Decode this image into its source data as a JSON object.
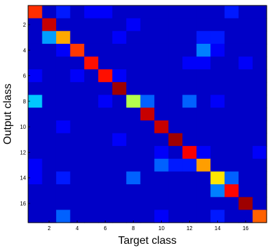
{
  "chart_data": {
    "type": "heatmap",
    "xlabel": "Target class",
    "ylabel": "Output class",
    "x_ticks": [
      2,
      4,
      6,
      8,
      10,
      12,
      14,
      16
    ],
    "y_ticks": [
      2,
      4,
      6,
      8,
      10,
      12,
      14,
      16
    ],
    "x_tick_labels": [
      "2",
      "4",
      "6",
      "8",
      "10",
      "12",
      "14",
      "16"
    ],
    "y_tick_labels": [
      "2",
      "4",
      "6",
      "8",
      "10",
      "12",
      "14",
      "16"
    ],
    "n_classes": 17,
    "colormap": "jet",
    "value_range": [
      0,
      1
    ],
    "matrix": [
      [
        0.83,
        0.07,
        0.15,
        0.07,
        0.12,
        0.12,
        0.07,
        0.07,
        0.07,
        0.07,
        0.07,
        0.07,
        0.07,
        0.07,
        0.15,
        0.07,
        0.07
      ],
      [
        0.07,
        0.93,
        0.07,
        0.07,
        0.07,
        0.07,
        0.07,
        0.12,
        0.07,
        0.07,
        0.07,
        0.07,
        0.07,
        0.07,
        0.07,
        0.07,
        0.07
      ],
      [
        0.07,
        0.28,
        0.71,
        0.07,
        0.07,
        0.07,
        0.12,
        0.07,
        0.07,
        0.07,
        0.07,
        0.07,
        0.15,
        0.15,
        0.07,
        0.07,
        0.07
      ],
      [
        0.07,
        0.07,
        0.12,
        0.82,
        0.07,
        0.07,
        0.07,
        0.07,
        0.07,
        0.07,
        0.07,
        0.07,
        0.25,
        0.12,
        0.07,
        0.07,
        0.07
      ],
      [
        0.07,
        0.07,
        0.07,
        0.07,
        0.86,
        0.07,
        0.07,
        0.07,
        0.07,
        0.07,
        0.07,
        0.12,
        0.12,
        0.07,
        0.07,
        0.12,
        0.07
      ],
      [
        0.12,
        0.07,
        0.07,
        0.12,
        0.07,
        0.86,
        0.12,
        0.07,
        0.07,
        0.07,
        0.07,
        0.07,
        0.07,
        0.07,
        0.07,
        0.07,
        0.07
      ],
      [
        0.07,
        0.07,
        0.07,
        0.07,
        0.07,
        0.07,
        0.97,
        0.07,
        0.07,
        0.07,
        0.07,
        0.07,
        0.07,
        0.07,
        0.07,
        0.07,
        0.07
      ],
      [
        0.32,
        0.07,
        0.07,
        0.07,
        0.07,
        0.12,
        0.07,
        0.55,
        0.22,
        0.07,
        0.07,
        0.22,
        0.07,
        0.12,
        0.07,
        0.07,
        0.07
      ],
      [
        0.07,
        0.07,
        0.07,
        0.07,
        0.07,
        0.07,
        0.07,
        0.07,
        0.93,
        0.07,
        0.07,
        0.07,
        0.07,
        0.07,
        0.07,
        0.07,
        0.07
      ],
      [
        0.07,
        0.07,
        0.12,
        0.07,
        0.07,
        0.07,
        0.07,
        0.07,
        0.07,
        0.93,
        0.07,
        0.07,
        0.07,
        0.07,
        0.07,
        0.07,
        0.07
      ],
      [
        0.07,
        0.07,
        0.07,
        0.07,
        0.07,
        0.07,
        0.12,
        0.07,
        0.07,
        0.07,
        0.97,
        0.07,
        0.07,
        0.07,
        0.07,
        0.07,
        0.07
      ],
      [
        0.07,
        0.07,
        0.07,
        0.07,
        0.07,
        0.07,
        0.07,
        0.07,
        0.07,
        0.12,
        0.07,
        0.88,
        0.12,
        0.07,
        0.07,
        0.07,
        0.12
      ],
      [
        0.12,
        0.07,
        0.07,
        0.07,
        0.07,
        0.07,
        0.07,
        0.07,
        0.07,
        0.22,
        0.15,
        0.15,
        0.72,
        0.07,
        0.07,
        0.07,
        0.07
      ],
      [
        0.12,
        0.07,
        0.15,
        0.07,
        0.07,
        0.07,
        0.07,
        0.22,
        0.07,
        0.07,
        0.07,
        0.07,
        0.07,
        0.65,
        0.22,
        0.07,
        0.07
      ],
      [
        0.07,
        0.07,
        0.07,
        0.07,
        0.07,
        0.07,
        0.07,
        0.07,
        0.07,
        0.07,
        0.07,
        0.07,
        0.07,
        0.25,
        0.87,
        0.07,
        0.07
      ],
      [
        0.07,
        0.07,
        0.07,
        0.07,
        0.07,
        0.07,
        0.07,
        0.07,
        0.07,
        0.07,
        0.07,
        0.07,
        0.07,
        0.07,
        0.07,
        0.97,
        0.07
      ],
      [
        0.07,
        0.07,
        0.22,
        0.07,
        0.07,
        0.07,
        0.07,
        0.07,
        0.07,
        0.12,
        0.07,
        0.07,
        0.07,
        0.15,
        0.07,
        0.07,
        0.78
      ]
    ]
  }
}
